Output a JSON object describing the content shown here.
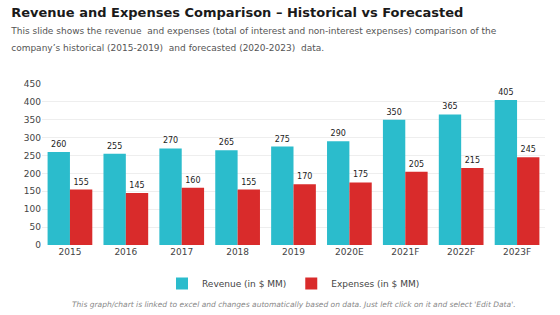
{
  "chart_data": {
    "type": "bar",
    "title": "Revenue and Expenses Comparison – Historical vs Forecasted",
    "subtitle": "This slide shows the revenue  and expenses (total of interest and non-interest expenses) comparison of the company’s historical (2015-2019)  and forecasted (2020-2023)  data.",
    "annotations": [
      "This graph/chart is linked to excel and changes automatically based on data. Just left click on it and select 'Edit Data'."
    ],
    "categories": [
      "2015",
      "2016",
      "2017",
      "2018",
      "2019",
      "2020E",
      "2021F",
      "2022F",
      "2023F"
    ],
    "series": [
      {
        "name": "Revenue (in $ MM)",
        "color": "#2BBCCC",
        "values": [
          260,
          255,
          270,
          265,
          275,
          290,
          350,
          365,
          405
        ]
      },
      {
        "name": "Expenses (in $ MM)",
        "color": "#D92B2B",
        "values": [
          155,
          145,
          160,
          155,
          170,
          175,
          205,
          215,
          245
        ]
      }
    ],
    "ylim": [
      0,
      450
    ],
    "yticks": [
      0,
      50,
      100,
      150,
      200,
      250,
      300,
      350,
      400,
      450
    ],
    "grid": true,
    "legend": "bottom",
    "data_labels": true
  }
}
